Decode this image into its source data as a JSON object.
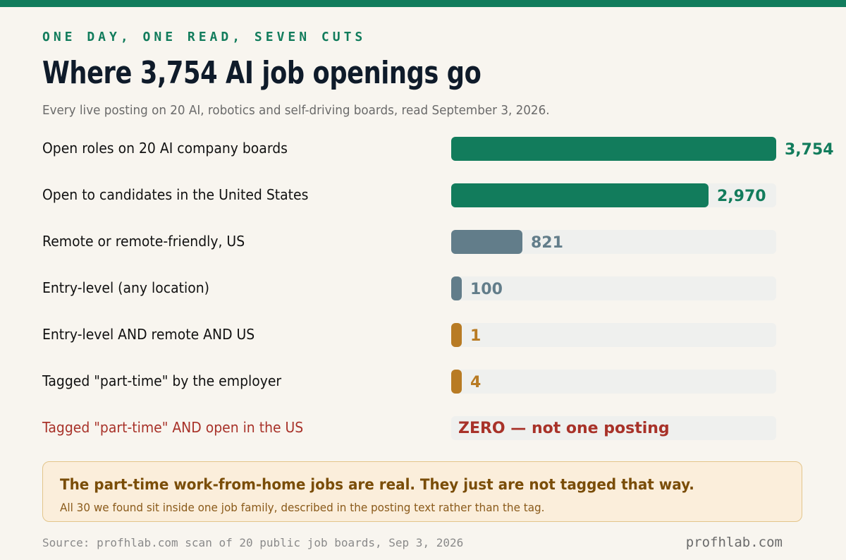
{
  "header": {
    "kicker": "ONE DAY, ONE READ, SEVEN CUTS",
    "title": "Where 3,754 AI job openings go",
    "subtitle": "Every live posting on 20 AI, robotics and self-driving boards, read September 3, 2026."
  },
  "colors": {
    "accent_green": "#127c5c",
    "slate": "#627d8a",
    "amber": "#b87b24",
    "alert_red": "#a83229",
    "track": "#eff0ee"
  },
  "chart_data": {
    "type": "bar",
    "orientation": "horizontal",
    "title": "Where 3,754 AI job openings go",
    "xlim": [
      0,
      3754
    ],
    "grid": false,
    "legend": "none",
    "categories": [
      "Open roles on 20 AI company boards",
      "Open to candidates in the United States",
      "Remote or remote-friendly, US",
      "Entry-level (any location)",
      "Entry-level AND remote AND US",
      "Tagged \"part-time\" by the employer",
      "Tagged \"part-time\" AND open in the US"
    ],
    "values": [
      3754,
      2970,
      821,
      100,
      1,
      4,
      0
    ],
    "value_labels": [
      "3,754",
      "2,970",
      "821",
      "100",
      "1",
      "4",
      ""
    ],
    "colors": [
      "#127c5c",
      "#127c5c",
      "#627d8a",
      "#627d8a",
      "#b87b24",
      "#b87b24",
      "#a83229"
    ],
    "zero_annotation": "ZERO  —  not one posting"
  },
  "callout": {
    "headline": "The part-time work-from-home jobs are real. They just are not tagged that way.",
    "body": "All 30 we found sit inside one job family, described in the posting text rather than the tag."
  },
  "footer": {
    "source": "Source: profhlab.com scan of 20 public job boards, Sep 3, 2026",
    "brand": "profhlab.com"
  }
}
